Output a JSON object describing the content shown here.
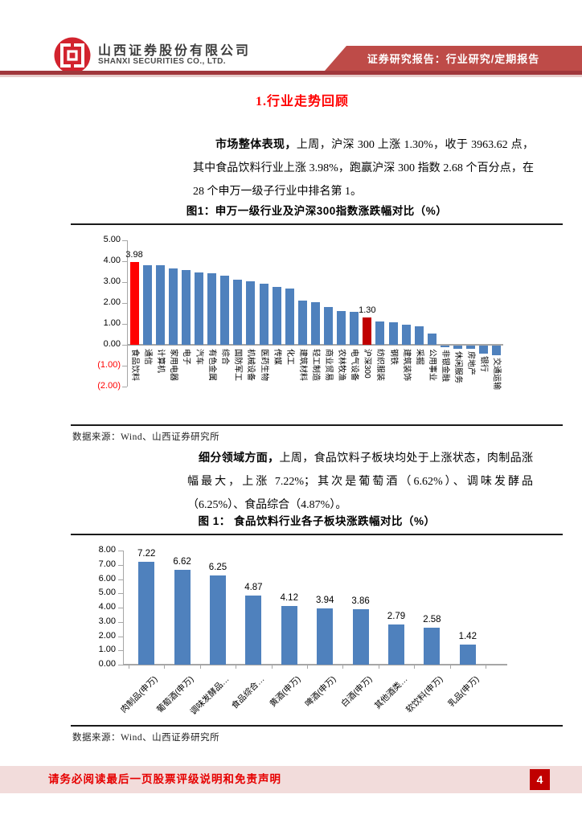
{
  "header": {
    "company_cn": "山西证券股份有限公司",
    "company_en": "SHANXI SECURITIES CO., LTD.",
    "banner": "证券研究报告：行业研究/定期报告"
  },
  "section_title": "1.行业走势回顾",
  "paragraph1": {
    "lead": "市场整体表现，",
    "body": "上周，沪深 300 上涨 1.30%，收于 3963.62 点，其中食品饮料行业上涨 3.98%，跑赢沪深 300 指数 2.68 个百分点，在 28 个申万一级子行业中排名第 1。"
  },
  "paragraph2": {
    "lead": "细分领域方面，",
    "body": "上周，食品饮料子板块均处于上涨状态，肉制品涨幅最大，上涨 7.22%；其次是葡萄酒（6.62%）、调味发酵品（6.25%）、食品综合（4.87%）。"
  },
  "source_note": "数据来源：Wind、山西证券研究所",
  "footer": {
    "disclaimer": "请务必阅读最后一页股票评级说明和免责声明",
    "page": "4"
  },
  "colors": {
    "bar_blue": "#4F81BD",
    "highlight_red": "#FF0000",
    "index_red": "#C00000",
    "banner_bg": "#BE4B48",
    "rule_dark": "#A0373C",
    "footer_band": "#F2DCDB",
    "page_box": "#C00000",
    "section_title_red": "#FF0000"
  },
  "chart_data": [
    {
      "type": "bar",
      "title": "图1：申万一级行业及沪深300指数涨跌幅对比（%）",
      "xlabel": "",
      "ylabel": "",
      "ylim": [
        -2.0,
        5.0
      ],
      "grid": false,
      "legend": "none",
      "yticks": [
        "5.00",
        "4.00",
        "3.00",
        "2.00",
        "1.00",
        "0.00",
        "(1.00)",
        "(2.00)"
      ],
      "points": [
        {
          "label": "食品饮料",
          "value": 3.98,
          "color": "#FF0000",
          "data_label": "3.98"
        },
        {
          "label": "通信",
          "value": 3.82
        },
        {
          "label": "计算机",
          "value": 3.8
        },
        {
          "label": "家用电器",
          "value": 3.66
        },
        {
          "label": "电子",
          "value": 3.58
        },
        {
          "label": "汽车",
          "value": 3.45
        },
        {
          "label": "有色金属",
          "value": 3.41
        },
        {
          "label": "综合",
          "value": 3.32
        },
        {
          "label": "国防军工",
          "value": 3.13
        },
        {
          "label": "机械设备",
          "value": 3.05
        },
        {
          "label": "医药生物",
          "value": 2.94
        },
        {
          "label": "传媒",
          "value": 2.76
        },
        {
          "label": "化工",
          "value": 2.7
        },
        {
          "label": "建筑材料",
          "value": 2.13
        },
        {
          "label": "轻工制造",
          "value": 2.05
        },
        {
          "label": "商业贸易",
          "value": 1.82
        },
        {
          "label": "农林牧渔",
          "value": 1.63
        },
        {
          "label": "电气设备",
          "value": 1.58
        },
        {
          "label": "沪深300",
          "value": 1.3,
          "color": "#C00000",
          "data_label": "1.30"
        },
        {
          "label": "纺织服装",
          "value": 1.1
        },
        {
          "label": "钢铁",
          "value": 1.08
        },
        {
          "label": "建筑装饰",
          "value": 0.97
        },
        {
          "label": "采掘",
          "value": 0.88
        },
        {
          "label": "公用事业",
          "value": 0.52
        },
        {
          "label": "非银金融",
          "value": -0.06
        },
        {
          "label": "休闲服务",
          "value": -0.14
        },
        {
          "label": "房地产",
          "value": -0.16
        },
        {
          "label": "银行",
          "value": -0.38
        },
        {
          "label": "交通运输",
          "value": -0.45
        }
      ]
    },
    {
      "type": "bar",
      "title": "图 1：  食品饮料行业各子板块涨跌幅对比（%）",
      "xlabel": "",
      "ylabel": "",
      "ylim": [
        0.0,
        8.0
      ],
      "grid": false,
      "legend": "none",
      "yticks": [
        "8.00",
        "7.00",
        "6.00",
        "5.00",
        "4.00",
        "3.00",
        "2.00",
        "1.00",
        "0.00"
      ],
      "points": [
        {
          "label": "肉制品(申万)",
          "value": 7.22,
          "data_label": "7.22"
        },
        {
          "label": "葡萄酒(申万)",
          "value": 6.62,
          "data_label": "6.62"
        },
        {
          "label": "调味发酵品…",
          "value": 6.25,
          "data_label": "6.25"
        },
        {
          "label": "食品综合…",
          "value": 4.87,
          "data_label": "4.87"
        },
        {
          "label": "黄酒(申万)",
          "value": 4.12,
          "data_label": "4.12"
        },
        {
          "label": "啤酒(申万)",
          "value": 3.94,
          "data_label": "3.94"
        },
        {
          "label": "白酒(申万)",
          "value": 3.86,
          "data_label": "3.86"
        },
        {
          "label": "其他酒类…",
          "value": 2.79,
          "data_label": "2.79"
        },
        {
          "label": "软饮料(申万)",
          "value": 2.58,
          "data_label": "2.58"
        },
        {
          "label": "乳品(申万)",
          "value": 1.42,
          "data_label": "1.42"
        }
      ]
    }
  ]
}
